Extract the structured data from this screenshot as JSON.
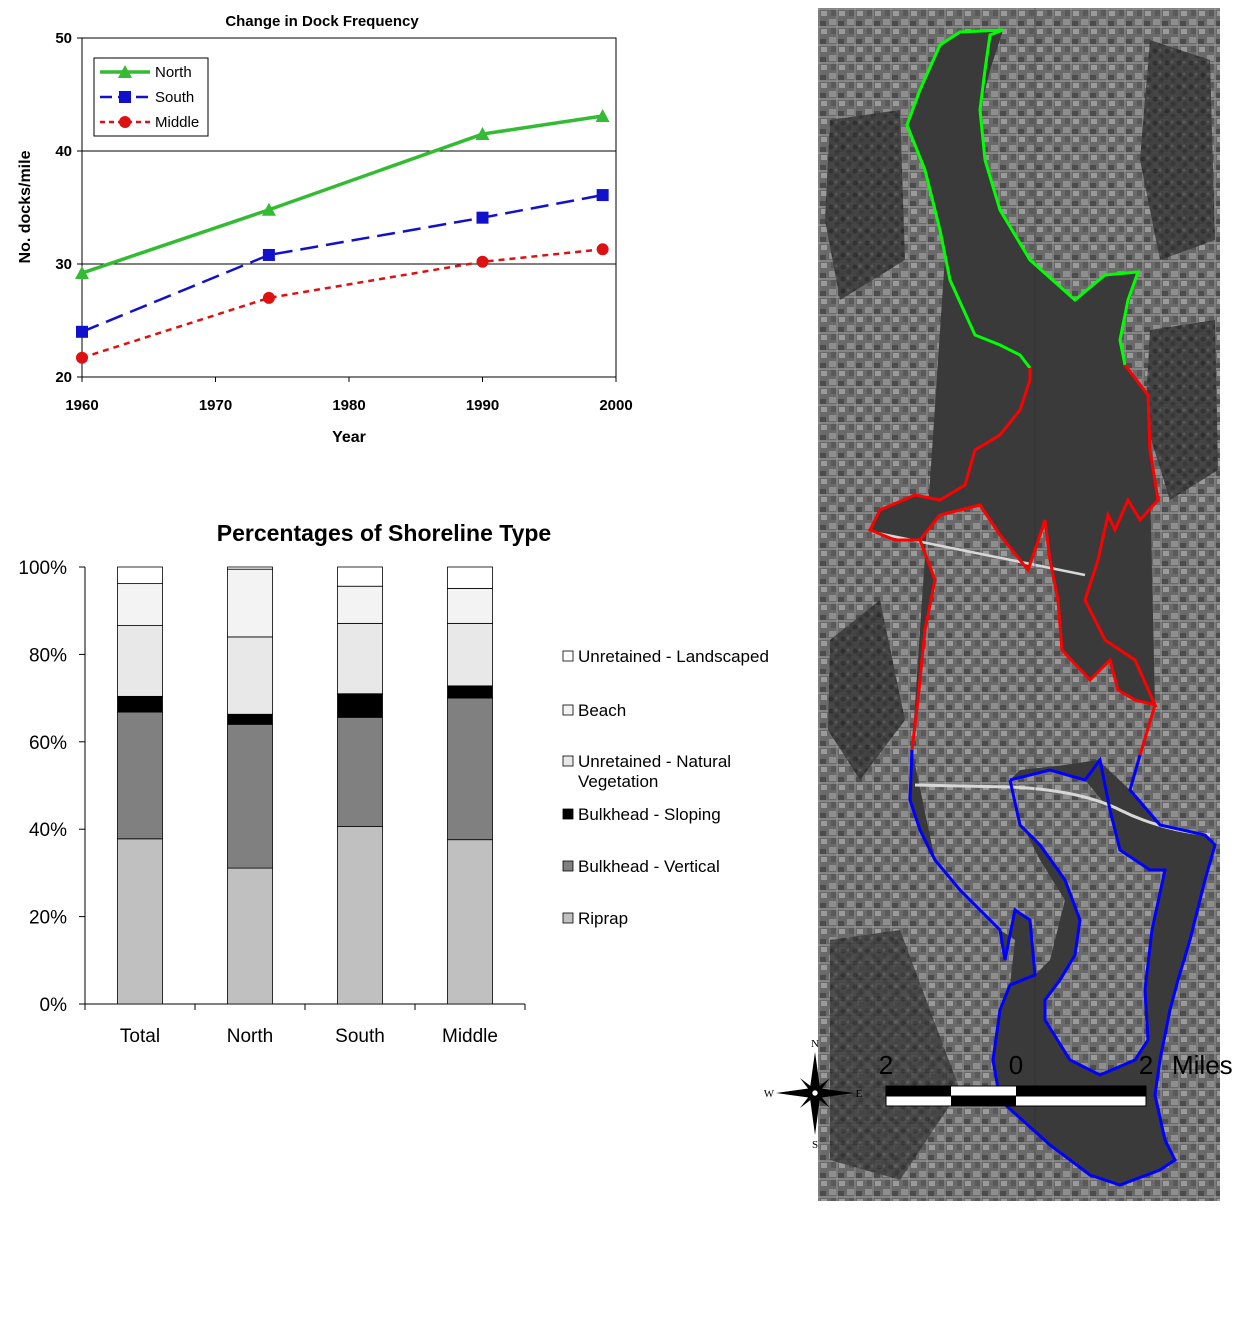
{
  "colors": {
    "north": "#33bb33",
    "south": "#1111cc",
    "middle": "#dd1111"
  },
  "chart_data": [
    {
      "type": "line",
      "title": "Change in Dock Frequency",
      "xlabel": "Year",
      "ylabel": "No. docks/mile",
      "xlim": [
        1960,
        2000
      ],
      "ylim": [
        20,
        50
      ],
      "xticks": [
        "1960",
        "1970",
        "1980",
        "1990",
        "2000"
      ],
      "yticks": [
        "20",
        "30",
        "40",
        "50"
      ],
      "grid": "horizontal at 30 and 40",
      "legend": "top-left",
      "series": [
        {
          "name": "North",
          "color": "#33bb33",
          "marker": "triangle",
          "style": "solid",
          "x": [
            1960,
            1974,
            1990,
            1999
          ],
          "y": [
            29.2,
            34.8,
            41.5,
            43.1
          ]
        },
        {
          "name": "South",
          "color": "#1111cc",
          "marker": "square",
          "style": "dashed",
          "x": [
            1960,
            1974,
            1990,
            1999
          ],
          "y": [
            24.0,
            30.8,
            34.1,
            36.1
          ]
        },
        {
          "name": "Middle",
          "color": "#dd1111",
          "marker": "circle",
          "style": "dotted",
          "x": [
            1960,
            1974,
            1990,
            1999
          ],
          "y": [
            21.7,
            27.0,
            30.2,
            31.3
          ]
        }
      ]
    },
    {
      "type": "bar",
      "stacked": true,
      "title": "Percentages of Shoreline Type",
      "categories": [
        "Total",
        "North",
        "South",
        "Middle"
      ],
      "yticks": [
        "0%",
        "20%",
        "40%",
        "60%",
        "80%",
        "100%"
      ],
      "ylim": [
        0,
        100
      ],
      "legend": "right",
      "series": [
        {
          "name": "Riprap",
          "color": "#c0c0c0",
          "values": [
            37.8,
            31.1,
            40.6,
            37.6
          ]
        },
        {
          "name": "Bulkhead - Vertical",
          "color": "#808080",
          "values": [
            29.0,
            32.9,
            25.0,
            32.4
          ]
        },
        {
          "name": "Bulkhead - Sloping",
          "color": "#000000",
          "values": [
            3.6,
            2.3,
            5.4,
            2.8
          ]
        },
        {
          "name": "Unretained - Natural Vegetation",
          "color": "#e8e8e8",
          "values": [
            16.2,
            17.7,
            16.1,
            14.3
          ]
        },
        {
          "name": "Beach",
          "color": "#f3f3f3",
          "values": [
            9.6,
            15.5,
            8.5,
            8.0
          ]
        },
        {
          "name": "Unretained - Landscaped",
          "color": "#ffffff",
          "values": [
            3.8,
            0.5,
            4.4,
            4.9
          ]
        }
      ],
      "legend_labels": [
        {
          "lines": [
            "Unretained - Landscaped"
          ]
        },
        {
          "lines": [
            "Beach"
          ]
        },
        {
          "lines": [
            "Unretained - Natural",
            "Vegetation"
          ]
        },
        {
          "lines": [
            "Bulkhead - Sloping"
          ]
        },
        {
          "lines": [
            "Bulkhead - Vertical"
          ]
        },
        {
          "lines": [
            "Riprap"
          ]
        }
      ]
    }
  ],
  "map": {
    "compass": {
      "n": "N",
      "s": "S",
      "e": "E",
      "w": "W"
    },
    "scale_labels": [
      "2",
      "0",
      "2"
    ],
    "scale_unit": "Miles"
  }
}
